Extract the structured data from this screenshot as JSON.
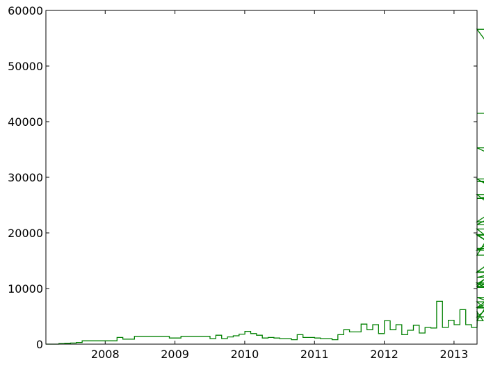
{
  "chart_data": {
    "type": "line",
    "style": "step histogram",
    "title": "",
    "xlabel": "",
    "ylabel": "",
    "xlim": [
      2007.15,
      2013.33
    ],
    "ylim": [
      0,
      60000
    ],
    "x_ticks": [
      2008,
      2009,
      2010,
      2011,
      2012,
      2013
    ],
    "y_ticks": [
      0,
      10000,
      20000,
      30000,
      40000,
      50000,
      60000
    ],
    "grid": false,
    "legend": "none",
    "line_color": "#008000",
    "bin_width_years": 0.0833,
    "series": [
      {
        "bin_start": 2007.17,
        "values": [
          0,
          0,
          100,
          150,
          200,
          300,
          600,
          600,
          600,
          600,
          600,
          600,
          1200,
          900,
          900,
          1400,
          1400,
          1400,
          1400,
          1400,
          1400,
          1100,
          1100,
          1400,
          1400,
          1400,
          1400,
          1400,
          1000,
          1600,
          1000,
          1300,
          1500,
          1800,
          2300,
          1900,
          1600,
          1100,
          1200,
          1100,
          1000,
          1000,
          800,
          1700,
          1200,
          1200,
          1100,
          1000,
          1000,
          800,
          1700,
          2600,
          2200,
          2200,
          3600,
          2600,
          3500,
          1900,
          4200,
          2600,
          3500,
          1700,
          2500,
          3400,
          2000,
          3000,
          2900,
          7700,
          3000,
          4300,
          3500,
          6200,
          3500,
          3000,
          5800,
          4200,
          7600,
          4900,
          8400,
          6600,
          11000,
          6500,
          10400,
          19600,
          13000,
          20700,
          10800,
          19700,
          10200,
          17200,
          12900,
          26900,
          12000,
          16900,
          29300,
          26200,
          29700,
          16000,
          56600,
          21500,
          35300,
          22000,
          41500
        ]
      }
    ]
  }
}
